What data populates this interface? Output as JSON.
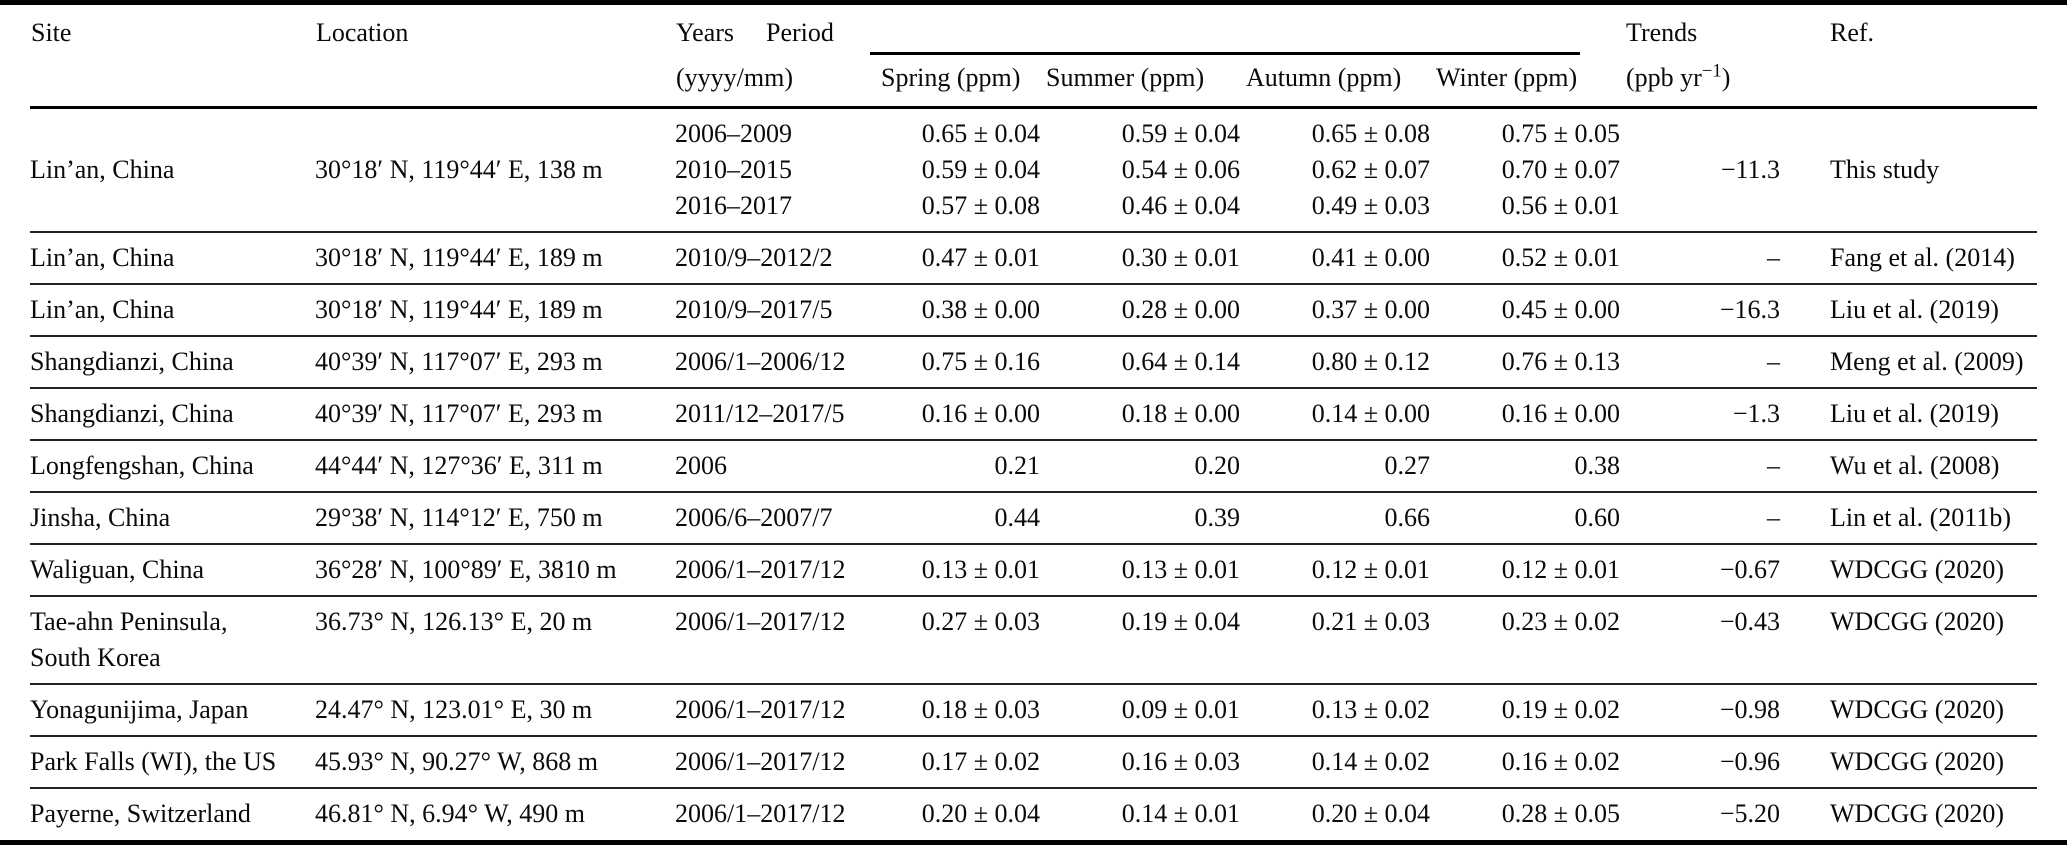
{
  "colors": {
    "text": "#0a0a0a",
    "rule": "#000000",
    "background": "#ffffff"
  },
  "table": {
    "header": {
      "site": "Site",
      "location": "Location",
      "years": "Years",
      "years_unit": "(yyyy/mm)",
      "period": "Period",
      "spring": "Spring (ppm)",
      "summer": "Summer (ppm)",
      "autumn": "Autumn (ppm)",
      "winter": "Winter (ppm)",
      "trends": "Trends",
      "trends_unit_pre": "(ppb yr",
      "trends_unit_sup": "−1",
      "trends_unit_post": ")",
      "ref": "Ref."
    },
    "rows": [
      {
        "site": "Lin’an, China",
        "location": "30°18′ N, 119°44′ E, 138 m",
        "years": [
          "2006–2009",
          "2010–2015",
          "2016–2017"
        ],
        "spring": [
          "0.65 ± 0.04",
          "0.59 ± 0.04",
          "0.57 ± 0.08"
        ],
        "summer": [
          "0.59 ± 0.04",
          "0.54 ± 0.06",
          "0.46 ± 0.04"
        ],
        "autumn": [
          "0.65 ± 0.08",
          "0.62 ± 0.07",
          "0.49 ± 0.03"
        ],
        "winter": [
          "0.75 ± 0.05",
          "0.70 ± 0.07",
          "0.56 ± 0.01"
        ],
        "trends": "−11.3",
        "ref": "This study"
      },
      {
        "site": "Lin’an, China",
        "location": "30°18′ N, 119°44′ E, 189 m",
        "years": "2010/9–2012/2",
        "spring": "0.47 ± 0.01",
        "summer": "0.30 ± 0.01",
        "autumn": "0.41 ± 0.00",
        "winter": "0.52 ± 0.01",
        "trends": "–",
        "ref": "Fang et al. (2014)"
      },
      {
        "site": "Lin’an, China",
        "location": "30°18′ N, 119°44′ E, 189 m",
        "years": "2010/9–2017/5",
        "spring": "0.38 ± 0.00",
        "summer": "0.28 ± 0.00",
        "autumn": "0.37 ± 0.00",
        "winter": "0.45 ± 0.00",
        "trends": "−16.3",
        "ref": "Liu et al. (2019)"
      },
      {
        "site": "Shangdianzi, China",
        "location": "40°39′ N, 117°07′ E, 293 m",
        "years": "2006/1–2006/12",
        "spring": "0.75 ± 0.16",
        "summer": "0.64 ± 0.14",
        "autumn": "0.80 ± 0.12",
        "winter": "0.76 ± 0.13",
        "trends": "–",
        "ref": "Meng et al. (2009)"
      },
      {
        "site": "Shangdianzi, China",
        "location": "40°39′ N, 117°07′ E, 293 m",
        "years": "2011/12–2017/5",
        "spring": "0.16 ± 0.00",
        "summer": "0.18 ± 0.00",
        "autumn": "0.14 ± 0.00",
        "winter": "0.16 ± 0.00",
        "trends": "−1.3",
        "ref": "Liu et al. (2019)"
      },
      {
        "site": "Longfengshan, China",
        "location": "44°44′ N, 127°36′ E, 311 m",
        "years": "2006",
        "spring": "0.21",
        "summer": "0.20",
        "autumn": "0.27",
        "winter": "0.38",
        "trends": "–",
        "ref": "Wu et al. (2008)"
      },
      {
        "site": "Jinsha, China",
        "location": "29°38′ N, 114°12′ E, 750 m",
        "years": "2006/6–2007/7",
        "spring": "0.44",
        "summer": "0.39",
        "autumn": "0.66",
        "winter": "0.60",
        "trends": "–",
        "ref": "Lin et al. (2011b)"
      },
      {
        "site": "Waliguan, China",
        "location": "36°28′ N, 100°89′ E, 3810 m",
        "years": "2006/1–2017/12",
        "spring": "0.13 ± 0.01",
        "summer": "0.13 ± 0.01",
        "autumn": "0.12 ± 0.01",
        "winter": "0.12 ± 0.01",
        "trends": "−0.67",
        "ref": "WDCGG (2020)"
      },
      {
        "site": [
          "Tae-ahn Peninsula,",
          "South Korea"
        ],
        "location": "36.73° N, 126.13° E, 20 m",
        "years": "2006/1–2017/12",
        "spring": "0.27 ± 0.03",
        "summer": "0.19 ± 0.04",
        "autumn": "0.21 ± 0.03",
        "winter": "0.23 ± 0.02",
        "trends": "−0.43",
        "ref": "WDCGG (2020)",
        "valign": "top"
      },
      {
        "site": "Yonagunijima, Japan",
        "location": "24.47° N, 123.01° E, 30 m",
        "years": "2006/1–2017/12",
        "spring": "0.18 ± 0.03",
        "summer": "0.09 ± 0.01",
        "autumn": "0.13 ± 0.02",
        "winter": "0.19 ± 0.02",
        "trends": "−0.98",
        "ref": "WDCGG (2020)"
      },
      {
        "site": "Park Falls (WI), the US",
        "location": "45.93° N, 90.27° W, 868 m",
        "years": "2006/1–2017/12",
        "spring": "0.17 ± 0.02",
        "summer": "0.16 ± 0.03",
        "autumn": "0.14 ± 0.02",
        "winter": "0.16 ± 0.02",
        "trends": "−0.96",
        "ref": "WDCGG (2020)"
      },
      {
        "site": "Payerne, Switzerland",
        "location": "46.81° N, 6.94° W, 490 m",
        "years": "2006/1–2017/12",
        "spring": "0.20 ± 0.04",
        "summer": "0.14 ± 0.01",
        "autumn": "0.20 ± 0.04",
        "winter": "0.28 ± 0.05",
        "trends": "−5.20",
        "ref": "WDCGG (2020)"
      }
    ]
  }
}
